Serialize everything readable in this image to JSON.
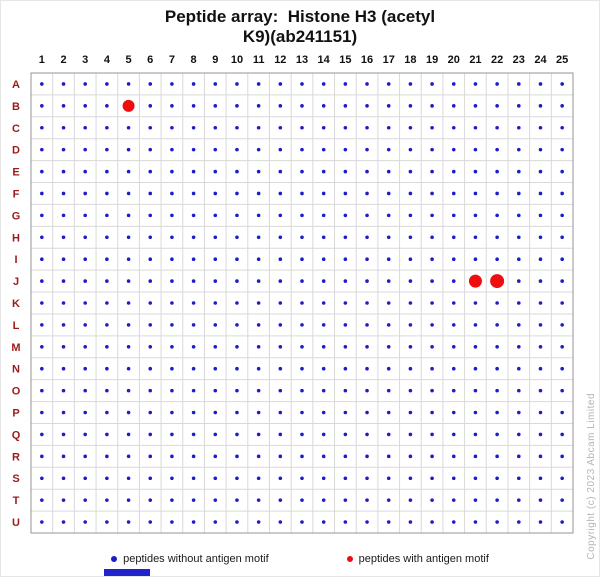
{
  "title": {
    "line1": "Peptide array:  Histone H3 (acetyl",
    "line2": "K9)(ab241151)"
  },
  "chart_data": {
    "type": "scatter",
    "title": "Peptide array: Histone H3 (acetyl K9)(ab241151)",
    "x_labels": [
      "1",
      "2",
      "3",
      "4",
      "5",
      "6",
      "7",
      "8",
      "9",
      "10",
      "11",
      "12",
      "13",
      "14",
      "15",
      "16",
      "17",
      "18",
      "19",
      "20",
      "21",
      "22",
      "23",
      "24",
      "25"
    ],
    "y_labels": [
      "A",
      "B",
      "C",
      "D",
      "E",
      "F",
      "G",
      "H",
      "I",
      "J",
      "K",
      "L",
      "M",
      "N",
      "O",
      "P",
      "Q",
      "R",
      "S",
      "T",
      "U"
    ],
    "grid": true,
    "default_spot": {
      "color": "#1c1ccc",
      "radius": 1.8,
      "note": "small blue spot at every row/column intersection unless listed in spots_with_motif"
    },
    "motif_color": "#ee0e0e",
    "spots_with_motif": [
      {
        "row": "B",
        "col": 5,
        "radius": 6
      },
      {
        "row": "J",
        "col": 21,
        "radius": 6.5
      },
      {
        "row": "J",
        "col": 22,
        "radius": 7
      }
    ],
    "legend": [
      {
        "label": "peptides without antigen motif",
        "color": "#1c1ccc"
      },
      {
        "label": "peptides with antigen motif",
        "color": "#ee0e0e"
      }
    ],
    "legend_position": "bottom",
    "gridline_color": "#d9d9d9",
    "border_color": "#949494"
  },
  "copyright": "Copyright (c) 2023 Abcam Limited",
  "footer_bar_color": "#2323cc"
}
